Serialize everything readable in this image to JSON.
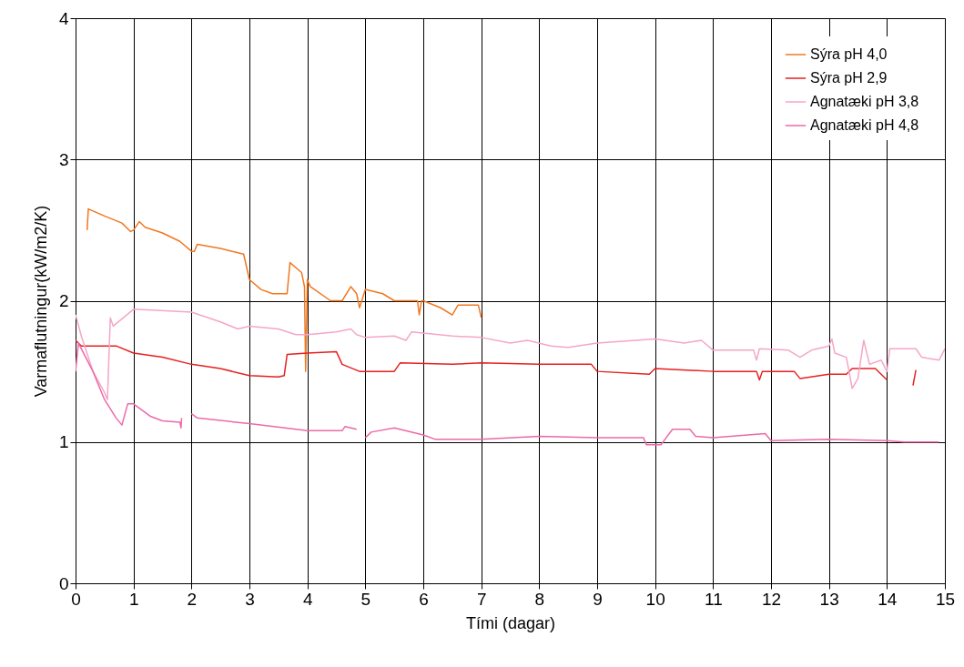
{
  "chart_data": {
    "type": "line",
    "xlabel": "Tími (dagar)",
    "ylabel": "Varmaflutningur(kW/m2/K)",
    "xlim": [
      0,
      15
    ],
    "xticks": [
      0,
      1,
      2,
      3,
      4,
      5,
      6,
      7,
      8,
      9,
      10,
      11,
      12,
      13,
      14,
      15
    ],
    "ylim": [
      0,
      4
    ],
    "yticks": [
      0,
      1,
      2,
      3,
      4
    ],
    "grid": true,
    "legend": "top right",
    "series": [
      {
        "name": "Sýra pH 4,0",
        "color": "#f07820",
        "x": [
          0.2,
          0.22,
          0.5,
          0.8,
          0.95,
          1.0,
          1.1,
          1.2,
          1.5,
          1.8,
          2.0,
          2.05,
          2.1,
          2.5,
          2.9,
          3.0,
          3.2,
          3.4,
          3.65,
          3.7,
          3.9,
          3.95,
          3.97,
          4.0,
          4.05,
          4.4,
          4.6,
          4.75,
          4.85,
          4.9,
          5.0,
          5.3,
          5.5,
          5.9,
          5.93,
          5.97,
          6.0,
          6.3,
          6.5,
          6.6,
          6.95,
          7.0
        ],
        "values": [
          2.5,
          2.65,
          2.6,
          2.55,
          2.49,
          2.5,
          2.56,
          2.52,
          2.48,
          2.42,
          2.35,
          2.35,
          2.4,
          2.37,
          2.33,
          2.15,
          2.08,
          2.05,
          2.05,
          2.27,
          2.2,
          2.1,
          1.5,
          2.15,
          2.1,
          2.0,
          2.0,
          2.1,
          2.05,
          1.95,
          2.08,
          2.05,
          2.0,
          2.0,
          1.9,
          2.0,
          2.0,
          1.95,
          1.9,
          1.97,
          1.97,
          1.88
        ]
      },
      {
        "name": "Sýra pH 2,9",
        "color": "#e82020",
        "x": [
          0,
          0.1,
          0.7,
          1.0,
          1.5,
          2.0,
          2.5,
          3.0,
          3.5,
          3.6,
          3.65,
          4.0,
          4.5,
          4.6,
          4.9,
          5.5,
          5.6,
          6.5,
          7.0,
          8.0,
          8.9,
          9.0,
          9.9,
          10.0,
          11.0,
          11.75,
          11.8,
          11.85,
          12.4,
          12.5,
          13.0,
          13.3,
          13.4,
          13.8,
          14.0,
          14.2,
          14.45,
          14.5
        ],
        "values": [
          1.72,
          1.68,
          1.68,
          1.63,
          1.6,
          1.55,
          1.52,
          1.47,
          1.46,
          1.47,
          1.62,
          1.63,
          1.64,
          1.55,
          1.5,
          1.5,
          1.56,
          1.55,
          1.56,
          1.55,
          1.55,
          1.5,
          1.48,
          1.52,
          1.5,
          1.5,
          1.44,
          1.5,
          1.5,
          1.45,
          1.48,
          1.48,
          1.52,
          1.52,
          1.44,
          null,
          1.4,
          1.51
        ]
      },
      {
        "name": "Agnatæki pH 3,8",
        "color": "#f4a6c8",
        "x": [
          0,
          0.1,
          0.3,
          0.5,
          0.55,
          0.6,
          0.65,
          1.0,
          2.0,
          2.5,
          2.8,
          3.0,
          3.5,
          3.8,
          4.0,
          4.5,
          4.75,
          4.85,
          5.0,
          5.5,
          5.7,
          5.8,
          6.5,
          7.0,
          7.5,
          7.8,
          8.2,
          8.5,
          9.0,
          10.0,
          10.5,
          10.8,
          11.0,
          11.7,
          11.75,
          11.8,
          12.3,
          12.5,
          12.7,
          13.0,
          13.05,
          13.1,
          13.3,
          13.4,
          13.5,
          13.6,
          13.7,
          13.9,
          14.0,
          14.05,
          14.5,
          14.6,
          14.9,
          15.0
        ],
        "values": [
          1.9,
          1.75,
          1.5,
          1.35,
          1.3,
          1.88,
          1.82,
          1.94,
          1.92,
          1.85,
          1.8,
          1.82,
          1.8,
          1.76,
          1.76,
          1.78,
          1.8,
          1.76,
          1.74,
          1.75,
          1.72,
          1.78,
          1.75,
          1.74,
          1.7,
          1.72,
          1.68,
          1.67,
          1.7,
          1.73,
          1.7,
          1.72,
          1.65,
          1.65,
          1.58,
          1.66,
          1.65,
          1.6,
          1.65,
          1.68,
          1.73,
          1.63,
          1.6,
          1.38,
          1.45,
          1.72,
          1.55,
          1.58,
          1.5,
          1.66,
          1.66,
          1.6,
          1.58,
          1.66
        ]
      },
      {
        "name": "Agnatæki pH 4,8",
        "color": "#ec6aa8",
        "x": [
          0,
          0.05,
          0.3,
          0.5,
          0.7,
          0.8,
          0.9,
          1.0,
          1.3,
          1.5,
          1.8,
          1.82,
          1.83,
          1.9,
          2.0,
          2.1,
          3.0,
          4.0,
          4.6,
          4.65,
          4.85,
          4.9,
          5.0,
          5.1,
          5.5,
          6.0,
          6.2,
          7.0,
          8.0,
          9.0,
          9.8,
          9.85,
          10.1,
          10.3,
          10.6,
          10.7,
          11.0,
          11.9,
          12.0,
          13.0,
          14.0,
          14.3,
          14.9
        ],
        "values": [
          1.5,
          1.7,
          1.5,
          1.3,
          1.17,
          1.12,
          1.27,
          1.27,
          1.18,
          1.15,
          1.14,
          1.1,
          1.17,
          null,
          1.2,
          1.17,
          1.13,
          1.08,
          1.08,
          1.11,
          1.09,
          null,
          1.03,
          1.07,
          1.1,
          1.05,
          1.02,
          1.02,
          1.04,
          1.03,
          1.03,
          0.98,
          0.98,
          1.09,
          1.09,
          1.04,
          1.03,
          1.06,
          1.01,
          1.02,
          1.01,
          1.0,
          1.0
        ]
      }
    ]
  }
}
